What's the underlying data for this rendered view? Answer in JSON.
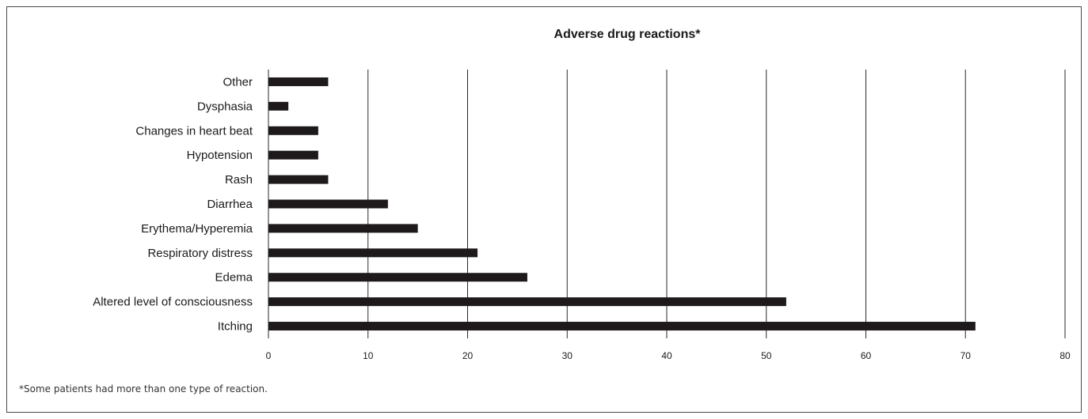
{
  "chart_data": {
    "type": "bar",
    "orientation": "horizontal",
    "title": "Adverse drug reactions*",
    "xlabel": "",
    "ylabel": "",
    "categories": [
      "Other",
      "Dysphasia",
      "Changes in heart beat",
      "Hypotension",
      "Rash",
      "Diarrhea",
      "Erythema/Hyperemia",
      "Respiratory distress",
      "Edema",
      "Altered level of consciousness",
      "Itching"
    ],
    "values": [
      6,
      2,
      5,
      5,
      6,
      12,
      15,
      21,
      26,
      52,
      71
    ],
    "xlim": [
      0,
      80
    ],
    "xticks": [
      0,
      10,
      20,
      30,
      40,
      50,
      60,
      70,
      80
    ],
    "grid": "vertical",
    "legend": "none",
    "bar_color": "#1e1a1b"
  },
  "footnote": "*Some patients had more than one type of reaction."
}
